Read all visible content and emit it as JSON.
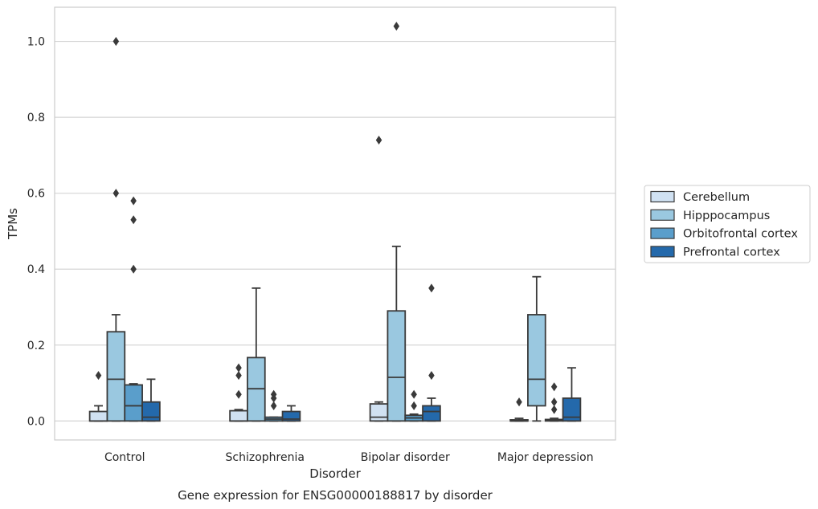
{
  "chart_data": {
    "type": "boxplot",
    "caption": "Gene expression for ENSG00000188817 by disorder",
    "xlabel": "Disorder",
    "ylabel": "TPMs",
    "ylim": [
      -0.05,
      1.09
    ],
    "yticks": [
      0.0,
      0.2,
      0.4,
      0.6,
      0.8,
      1.0
    ],
    "ytick_labels": [
      "0.0",
      "0.2",
      "0.4",
      "0.6",
      "0.8",
      "1.0"
    ],
    "grid": "horizontal",
    "legend_position": "right",
    "categories": [
      "Control",
      "Schizophrenia",
      "Bipolar disorder",
      "Major depression"
    ],
    "series": [
      {
        "name": "Cerebellum",
        "color": "#d0e1f2",
        "boxes": [
          {
            "whislo": 0.0,
            "q1": 0.0,
            "med": 0.0,
            "q3": 0.025,
            "whishi": 0.04,
            "fliers": [
              0.12
            ]
          },
          {
            "whislo": 0.0,
            "q1": 0.0,
            "med": 0.0,
            "q3": 0.027,
            "whishi": 0.03,
            "fliers": [
              0.07,
              0.12,
              0.14
            ]
          },
          {
            "whislo": 0.0,
            "q1": 0.0,
            "med": 0.01,
            "q3": 0.045,
            "whishi": 0.05,
            "fliers": [
              0.74
            ]
          },
          {
            "whislo": 0.0,
            "q1": 0.0,
            "med": 0.0,
            "q3": 0.003,
            "whishi": 0.007,
            "fliers": [
              0.05
            ]
          }
        ]
      },
      {
        "name": "Hipppocampus",
        "color": "#9ac8e0",
        "boxes": [
          {
            "whislo": 0.0,
            "q1": 0.0,
            "med": 0.11,
            "q3": 0.235,
            "whishi": 0.28,
            "fliers": [
              0.6,
              1.0
            ]
          },
          {
            "whislo": 0.0,
            "q1": 0.0,
            "med": 0.085,
            "q3": 0.167,
            "whishi": 0.35,
            "fliers": []
          },
          {
            "whislo": 0.0,
            "q1": 0.0,
            "med": 0.115,
            "q3": 0.29,
            "whishi": 0.46,
            "fliers": [
              1.04
            ]
          },
          {
            "whislo": 0.0,
            "q1": 0.04,
            "med": 0.11,
            "q3": 0.28,
            "whishi": 0.38,
            "fliers": []
          }
        ]
      },
      {
        "name": "Orbitofrontal cortex",
        "color": "#5a9ecb",
        "boxes": [
          {
            "whislo": 0.0,
            "q1": 0.0,
            "med": 0.04,
            "q3": 0.095,
            "whishi": 0.098,
            "fliers": [
              0.4,
              0.53,
              0.58
            ]
          },
          {
            "whislo": 0.0,
            "q1": 0.0,
            "med": 0.005,
            "q3": 0.01,
            "whishi": 0.01,
            "fliers": [
              0.04,
              0.06,
              0.07
            ]
          },
          {
            "whislo": 0.0,
            "q1": 0.0,
            "med": 0.008,
            "q3": 0.015,
            "whishi": 0.018,
            "fliers": [
              0.04,
              0.07
            ]
          },
          {
            "whislo": 0.0,
            "q1": 0.0,
            "med": 0.002,
            "q3": 0.004,
            "whishi": 0.007,
            "fliers": [
              0.03,
              0.05,
              0.09
            ]
          }
        ]
      },
      {
        "name": "Prefrontal cortex",
        "color": "#2469ab",
        "boxes": [
          {
            "whislo": 0.0,
            "q1": 0.0,
            "med": 0.01,
            "q3": 0.05,
            "whishi": 0.11,
            "fliers": []
          },
          {
            "whislo": 0.0,
            "q1": 0.0,
            "med": 0.005,
            "q3": 0.025,
            "whishi": 0.04,
            "fliers": []
          },
          {
            "whislo": 0.0,
            "q1": 0.0,
            "med": 0.025,
            "q3": 0.04,
            "whishi": 0.06,
            "fliers": [
              0.12,
              0.35
            ]
          },
          {
            "whislo": 0.0,
            "q1": 0.0,
            "med": 0.01,
            "q3": 0.06,
            "whishi": 0.14,
            "fliers": []
          }
        ]
      }
    ]
  }
}
